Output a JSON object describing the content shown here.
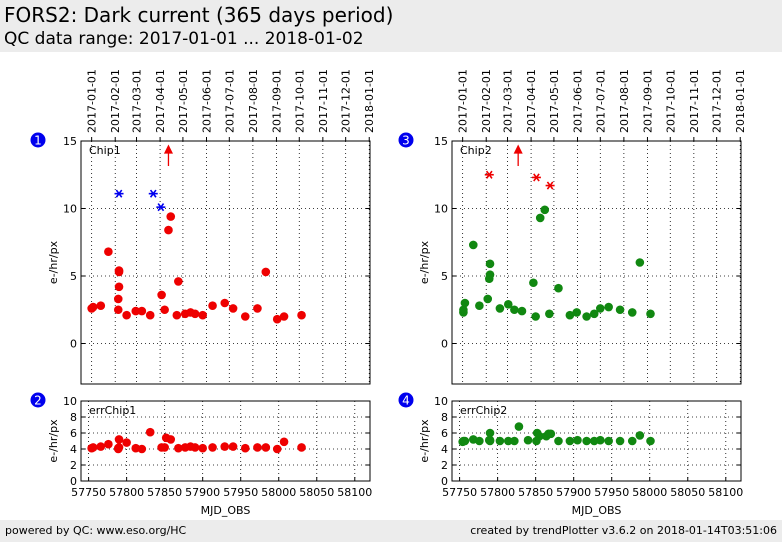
{
  "header": {
    "title": "FORS2: Dark current (365 days period)",
    "subtitle": "QC data range: 2017-01-01 ... 2018-01-02"
  },
  "footer": {
    "left": "powered by QC: www.eso.org/HC",
    "right": "created by trendPlotter v3.6.2 on 2018-01-14T03:51:06"
  },
  "colors": {
    "chip1": "#ee0000",
    "chip2": "#118811",
    "outlier": "#0000ee",
    "limit_marker": "#ee0000",
    "badge": "#0000ee"
  },
  "chart_data": [
    {
      "id": "1",
      "type": "scatter",
      "label": "Chip1",
      "ylabel": "e-/hr/px",
      "xlabel": "",
      "xlim": [
        57740,
        58120
      ],
      "ylim": [
        -3,
        15
      ],
      "yticks": [
        0,
        5,
        10,
        15
      ],
      "top_dates": [
        "2017-01-01",
        "2017-02-01",
        "2017-03-01",
        "2017-04-01",
        "2017-05-01",
        "2017-06-01",
        "2017-07-01",
        "2017-08-01",
        "2017-09-01",
        "2017-10-01",
        "2017-11-01",
        "2017-12-01",
        "2018-01-01"
      ],
      "top_tick_mjd": [
        57754,
        57785,
        57813,
        57844,
        57874,
        57905,
        57935,
        57966,
        57997,
        58027,
        58058,
        58088,
        58119
      ],
      "points": {
        "color": "chip1",
        "shape": "circle",
        "x": [
          57754,
          57756,
          57766,
          57776,
          57789,
          57789,
          57790,
          57790,
          57790,
          57800,
          57812,
          57820,
          57831,
          57846,
          57850,
          57855,
          57858,
          57866,
          57868,
          57877,
          57884,
          57890,
          57900,
          57913,
          57929,
          57940,
          57956,
          57972,
          57983,
          57998,
          58007,
          58030
        ],
        "y": [
          2.6,
          2.7,
          2.8,
          6.8,
          2.5,
          3.3,
          4.2,
          5.4,
          5.3,
          2.1,
          2.4,
          2.4,
          2.1,
          3.6,
          2.5,
          8.4,
          9.4,
          2.1,
          4.6,
          2.2,
          2.3,
          2.2,
          2.1,
          2.8,
          3.0,
          2.6,
          2.0,
          2.6,
          5.3,
          1.8,
          2.0,
          2.1
        ]
      },
      "outliers": {
        "color": "outlier",
        "shape": "asterisk",
        "x": [
          57790,
          57835,
          57845
        ],
        "y": [
          11.1,
          11.1,
          10.1
        ]
      },
      "limit_arrows": {
        "color": "limit_marker",
        "x": [
          57855
        ],
        "y": [
          15
        ]
      }
    },
    {
      "id": "2",
      "type": "scatter",
      "label": "errChip1",
      "ylabel": "e-/hr/px",
      "xlabel": "MJD_OBS",
      "xlim": [
        57740,
        58120
      ],
      "ylim": [
        0,
        10
      ],
      "yticks": [
        0,
        2,
        4,
        6,
        8,
        10
      ],
      "xticks": [
        57750,
        57800,
        57850,
        57900,
        57950,
        58000,
        58050,
        58100
      ],
      "points": {
        "color": "chip1",
        "shape": "circle",
        "x": [
          57754,
          57756,
          57766,
          57776,
          57789,
          57789,
          57790,
          57790,
          57800,
          57812,
          57820,
          57831,
          57846,
          57850,
          57852,
          57858,
          57868,
          57877,
          57884,
          57890,
          57900,
          57913,
          57929,
          57940,
          57956,
          57972,
          57983,
          57998,
          58007,
          58030
        ],
        "y": [
          4.1,
          4.2,
          4.3,
          4.6,
          4.1,
          4.0,
          4.2,
          5.2,
          4.8,
          4.1,
          4.0,
          6.1,
          4.2,
          4.2,
          5.4,
          5.2,
          4.1,
          4.2,
          4.3,
          4.2,
          4.1,
          4.2,
          4.3,
          4.3,
          4.1,
          4.2,
          4.2,
          4.0,
          4.9,
          4.2
        ]
      }
    },
    {
      "id": "3",
      "type": "scatter",
      "label": "Chip2",
      "ylabel": "e-/hr/px",
      "xlabel": "",
      "xlim": [
        57740,
        58120
      ],
      "ylim": [
        -3,
        15
      ],
      "yticks": [
        0,
        5,
        10,
        15
      ],
      "top_dates": [
        "2017-01-01",
        "2017-02-01",
        "2017-03-01",
        "2017-04-01",
        "2017-05-01",
        "2017-06-01",
        "2017-07-01",
        "2017-08-01",
        "2017-09-01",
        "2017-10-01",
        "2017-11-01",
        "2017-12-01",
        "2018-01-01"
      ],
      "top_tick_mjd": [
        57754,
        57785,
        57813,
        57844,
        57874,
        57905,
        57935,
        57966,
        57997,
        58027,
        58058,
        58088,
        58119
      ],
      "points": {
        "color": "chip2",
        "shape": "circle",
        "x": [
          57755,
          57755,
          57757,
          57768,
          57776,
          57787,
          57789,
          57790,
          57790,
          57803,
          57814,
          57822,
          57832,
          57847,
          57850,
          57856,
          57862,
          57868,
          57880,
          57895,
          57904,
          57917,
          57927,
          57935,
          57946,
          57961,
          57977,
          57987,
          58001
        ],
        "y": [
          2.3,
          2.5,
          3.0,
          7.3,
          2.8,
          3.3,
          4.8,
          5.1,
          5.9,
          2.6,
          2.9,
          2.5,
          2.4,
          4.5,
          2.0,
          9.3,
          9.9,
          2.2,
          4.1,
          2.1,
          2.3,
          2.0,
          2.2,
          2.6,
          2.7,
          2.5,
          2.3,
          6.0,
          2.2
        ]
      },
      "outliers": {
        "color": "limit_marker",
        "shape": "asterisk",
        "x": [
          57789,
          57851,
          57869
        ],
        "y": [
          12.5,
          12.3,
          11.7
        ]
      },
      "limit_arrows": {
        "color": "limit_marker",
        "x": [
          57827
        ],
        "y": [
          15
        ]
      }
    },
    {
      "id": "4",
      "type": "scatter",
      "label": "errChip2",
      "ylabel": "e-/hr/px",
      "xlabel": "MJD_OBS",
      "xlim": [
        57740,
        58120
      ],
      "ylim": [
        0,
        10
      ],
      "yticks": [
        0,
        2,
        4,
        6,
        8,
        10
      ],
      "xticks": [
        57750,
        57800,
        57850,
        57900,
        57950,
        58000,
        58050,
        58100
      ],
      "points": {
        "color": "chip2",
        "shape": "circle",
        "x": [
          57754,
          57755,
          57757,
          57768,
          57776,
          57789,
          57790,
          57790,
          57790,
          57803,
          57814,
          57822,
          57828,
          57840,
          57851,
          57852,
          57855,
          57864,
          57867,
          57870,
          57880,
          57895,
          57905,
          57917,
          57927,
          57935,
          57946,
          57961,
          57977,
          57987,
          58001
        ],
        "y": [
          4.9,
          5.0,
          5.0,
          5.2,
          5.0,
          5.1,
          5.0,
          6.0,
          5.1,
          5.0,
          5.0,
          5.0,
          6.8,
          5.1,
          5.0,
          6.0,
          5.6,
          5.6,
          5.9,
          5.9,
          5.0,
          5.0,
          5.1,
          5.0,
          5.0,
          5.1,
          5.0,
          5.0,
          5.0,
          5.7,
          5.0
        ]
      }
    }
  ]
}
